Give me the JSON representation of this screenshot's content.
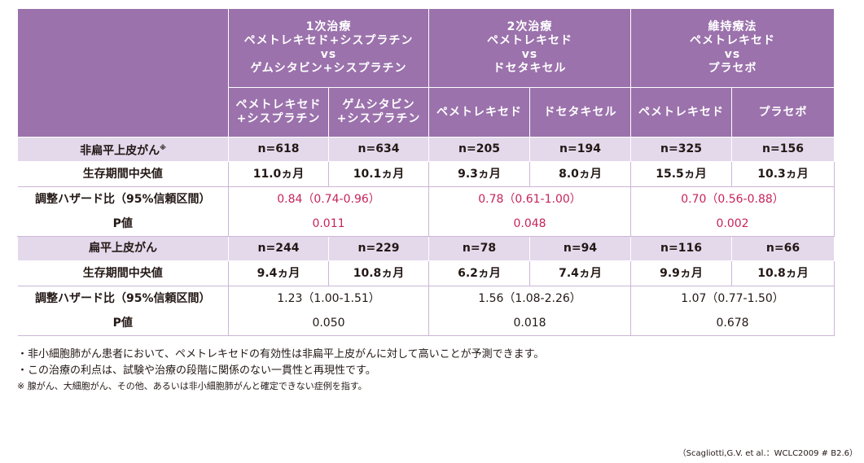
{
  "header": {
    "groups": [
      {
        "lines": [
          "1次治療",
          "ペメトレキセド+シスプラチン",
          "vs",
          "ゲムシタビン+シスプラチン"
        ]
      },
      {
        "lines": [
          "2次治療",
          "ペメトレキセド",
          "vs",
          "ドセタキセル"
        ]
      },
      {
        "lines": [
          "維持療法",
          "ペメトレキセド",
          "vs",
          "プラセボ"
        ]
      }
    ],
    "arms": [
      [
        "ペメトレキセド",
        "+シスプラチン"
      ],
      [
        "ゲムシタビン",
        "+シスプラチン"
      ],
      [
        "ペメトレキセド"
      ],
      [
        "ドセタキセル"
      ],
      [
        "ペメトレキセド"
      ],
      [
        "プラセボ"
      ]
    ]
  },
  "non_squamous": {
    "label": "非扁平上皮がん",
    "label_mark": "※",
    "n": [
      "n=618",
      "n=634",
      "n=205",
      "n=194",
      "n=325",
      "n=156"
    ],
    "median_label": "生存期間中央値",
    "median": [
      "11.0ヵ月",
      "10.1ヵ月",
      "9.3ヵ月",
      "8.0ヵ月",
      "15.5ヵ月",
      "10.3ヵ月"
    ],
    "hr_label": "調整ハザード比（95%信頼区間）",
    "hr": [
      "0.84（0.74-0.96）",
      "0.78（0.61-1.00）",
      "0.70（0.56-0.88）"
    ],
    "p_label": "P値",
    "p": [
      "0.011",
      "0.048",
      "0.002"
    ]
  },
  "squamous": {
    "label": "扁平上皮がん",
    "n": [
      "n=244",
      "n=229",
      "n=78",
      "n=94",
      "n=116",
      "n=66"
    ],
    "median_label": "生存期間中央値",
    "median": [
      "9.4ヵ月",
      "10.8ヵ月",
      "6.2ヵ月",
      "7.4ヵ月",
      "9.9ヵ月",
      "10.8ヵ月"
    ],
    "hr_label": "調整ハザード比（95%信頼区間）",
    "hr": [
      "1.23（1.00-1.51）",
      "1.56（1.08-2.26）",
      "1.07（0.77-1.50）"
    ],
    "p_label": "P値",
    "p": [
      "0.050",
      "0.018",
      "0.678"
    ]
  },
  "notes": [
    "・非小細胞肺がん患者において、ペメトレキセドの有効性は非扁平上皮がんに対して高いことが予測できます。",
    "・この治療の利点は、試験や治療の段階に関係のない一貫性と再現性です。",
    "※ 腺がん、大細胞がん、その他、あるいは非小細胞肺がんと確定できない症例を指す。"
  ],
  "source": "（Scagliotti,G.V. et al.：WCLC2009 # B2.6）",
  "colors": {
    "header": "#9b72ac",
    "group_row": "#e4d8eb",
    "highlight": "#c6245a",
    "grid": "#cbb6d6"
  }
}
